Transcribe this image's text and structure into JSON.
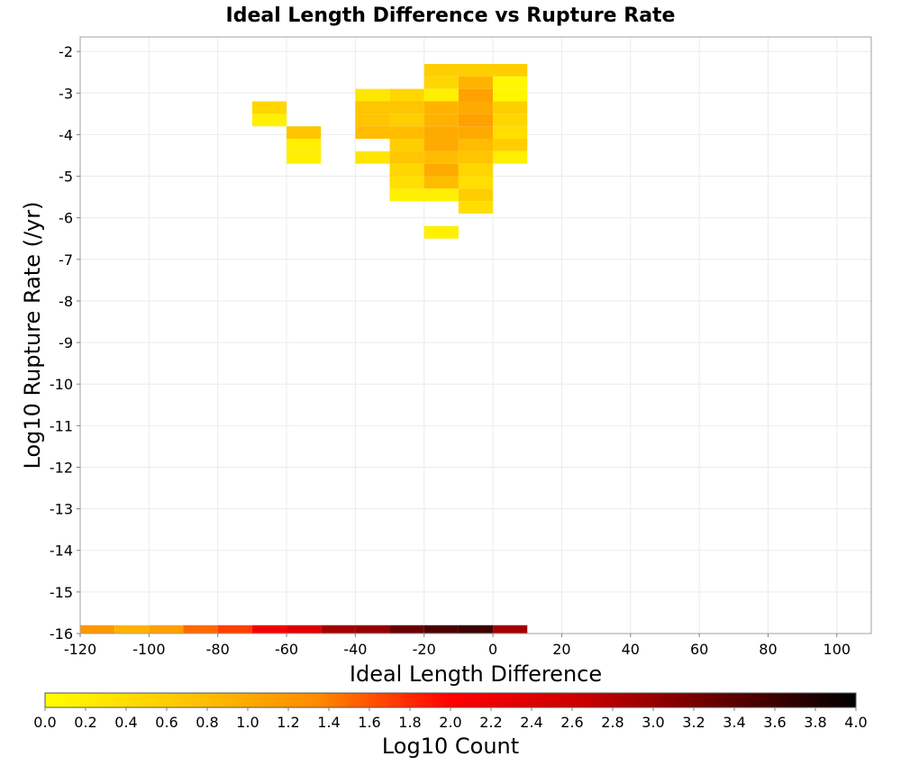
{
  "chart_data": {
    "type": "heatmap",
    "title": "Ideal Length Difference vs Rupture Rate",
    "xlabel": "Ideal Length Difference",
    "ylabel": "Log10 Rupture Rate (/yr)",
    "xlim": [
      -120,
      110
    ],
    "ylim": [
      -16,
      -1.65
    ],
    "x_ticks": [
      -120,
      -100,
      -80,
      -60,
      -40,
      -20,
      0,
      20,
      40,
      60,
      80,
      100
    ],
    "x_tick_labels": [
      "-120",
      "-100",
      "-80",
      "-60",
      "-40",
      "-20",
      "0",
      "20",
      "40",
      "60",
      "80",
      "100"
    ],
    "y_ticks": [
      -2,
      -3,
      -4,
      -5,
      -6,
      -7,
      -8,
      -9,
      -10,
      -11,
      -12,
      -13,
      -14,
      -15,
      -16
    ],
    "y_tick_labels": [
      "-2",
      "-3",
      "-4",
      "-5",
      "-6",
      "-7",
      "-8",
      "-9",
      "-10",
      "-11",
      "-12",
      "-13",
      "-14",
      "-15",
      "-16"
    ],
    "grid": true,
    "cell_width": 10,
    "cell_height": 0.3,
    "colorbar": {
      "label": "Log10 Count",
      "min": 0.0,
      "max": 4.0,
      "ticks": [
        "0.0",
        "0.2",
        "0.4",
        "0.6",
        "0.8",
        "1.0",
        "1.2",
        "1.4",
        "1.6",
        "1.8",
        "2.0",
        "2.2",
        "2.4",
        "2.6",
        "2.8",
        "3.0",
        "3.2",
        "3.4",
        "3.6",
        "3.8",
        "4.0"
      ],
      "colors": [
        "#ffff00",
        "#ffc800",
        "#ff8c00",
        "#ff0000",
        "#c80000",
        "#640000",
        "#000000"
      ]
    },
    "cells": [
      {
        "x": -20,
        "y": -2.6,
        "v": 0.6
      },
      {
        "x": -10,
        "y": -2.6,
        "v": 0.6
      },
      {
        "x": 0,
        "y": -2.6,
        "v": 0.6
      },
      {
        "x": -20,
        "y": -2.9,
        "v": 0.5
      },
      {
        "x": -10,
        "y": -2.9,
        "v": 0.9
      },
      {
        "x": 0,
        "y": -2.9,
        "v": 0.1
      },
      {
        "x": -40,
        "y": -3.2,
        "v": 0.3
      },
      {
        "x": -30,
        "y": -3.2,
        "v": 0.5
      },
      {
        "x": -20,
        "y": -3.2,
        "v": 0.2
      },
      {
        "x": -10,
        "y": -3.2,
        "v": 1.1
      },
      {
        "x": 0,
        "y": -3.2,
        "v": 0.1
      },
      {
        "x": -70,
        "y": -3.5,
        "v": 0.5
      },
      {
        "x": -40,
        "y": -3.5,
        "v": 0.7
      },
      {
        "x": -30,
        "y": -3.5,
        "v": 0.7
      },
      {
        "x": -20,
        "y": -3.5,
        "v": 0.9
      },
      {
        "x": -10,
        "y": -3.5,
        "v": 1.0
      },
      {
        "x": 0,
        "y": -3.5,
        "v": 0.6
      },
      {
        "x": -70,
        "y": -3.8,
        "v": 0.2
      },
      {
        "x": -40,
        "y": -3.8,
        "v": 0.7
      },
      {
        "x": -30,
        "y": -3.8,
        "v": 0.6
      },
      {
        "x": -20,
        "y": -3.8,
        "v": 0.9
      },
      {
        "x": -10,
        "y": -3.8,
        "v": 1.1
      },
      {
        "x": 0,
        "y": -3.8,
        "v": 0.5
      },
      {
        "x": -60,
        "y": -4.1,
        "v": 0.7
      },
      {
        "x": -40,
        "y": -4.1,
        "v": 0.8
      },
      {
        "x": -30,
        "y": -4.1,
        "v": 0.8
      },
      {
        "x": -20,
        "y": -4.1,
        "v": 1.0
      },
      {
        "x": -10,
        "y": -4.1,
        "v": 1.0
      },
      {
        "x": 0,
        "y": -4.1,
        "v": 0.4
      },
      {
        "x": -60,
        "y": -4.4,
        "v": 0.2
      },
      {
        "x": -30,
        "y": -4.4,
        "v": 0.6
      },
      {
        "x": -20,
        "y": -4.4,
        "v": 1.0
      },
      {
        "x": -10,
        "y": -4.4,
        "v": 0.8
      },
      {
        "x": 0,
        "y": -4.4,
        "v": 0.6
      },
      {
        "x": -60,
        "y": -4.7,
        "v": 0.2
      },
      {
        "x": -40,
        "y": -4.7,
        "v": 0.3
      },
      {
        "x": -30,
        "y": -4.7,
        "v": 0.7
      },
      {
        "x": -20,
        "y": -4.7,
        "v": 0.8
      },
      {
        "x": -10,
        "y": -4.7,
        "v": 0.7
      },
      {
        "x": 0,
        "y": -4.7,
        "v": 0.2
      },
      {
        "x": -30,
        "y": -5.0,
        "v": 0.5
      },
      {
        "x": -20,
        "y": -5.0,
        "v": 1.0
      },
      {
        "x": -10,
        "y": -5.0,
        "v": 0.5
      },
      {
        "x": -30,
        "y": -5.3,
        "v": 0.4
      },
      {
        "x": -20,
        "y": -5.3,
        "v": 0.8
      },
      {
        "x": -10,
        "y": -5.3,
        "v": 0.4
      },
      {
        "x": -30,
        "y": -5.6,
        "v": 0.2
      },
      {
        "x": -20,
        "y": -5.6,
        "v": 0.2
      },
      {
        "x": -10,
        "y": -5.6,
        "v": 0.6
      },
      {
        "x": -10,
        "y": -5.9,
        "v": 0.4
      },
      {
        "x": -20,
        "y": -6.5,
        "v": 0.2
      },
      {
        "x": -120,
        "y": -16.1,
        "v": 1.2
      },
      {
        "x": -110,
        "y": -16.1,
        "v": 0.9
      },
      {
        "x": -100,
        "y": -16.1,
        "v": 1.1
      },
      {
        "x": -90,
        "y": -16.1,
        "v": 1.5
      },
      {
        "x": -80,
        "y": -16.1,
        "v": 1.7
      },
      {
        "x": -70,
        "y": -16.1,
        "v": 2.1
      },
      {
        "x": -60,
        "y": -16.1,
        "v": 2.4
      },
      {
        "x": -50,
        "y": -16.1,
        "v": 2.9
      },
      {
        "x": -40,
        "y": -16.1,
        "v": 3.0
      },
      {
        "x": -30,
        "y": -16.1,
        "v": 3.3
      },
      {
        "x": -20,
        "y": -16.1,
        "v": 3.5
      },
      {
        "x": -10,
        "y": -16.1,
        "v": 3.6
      },
      {
        "x": 0,
        "y": -16.1,
        "v": 2.9
      }
    ]
  }
}
